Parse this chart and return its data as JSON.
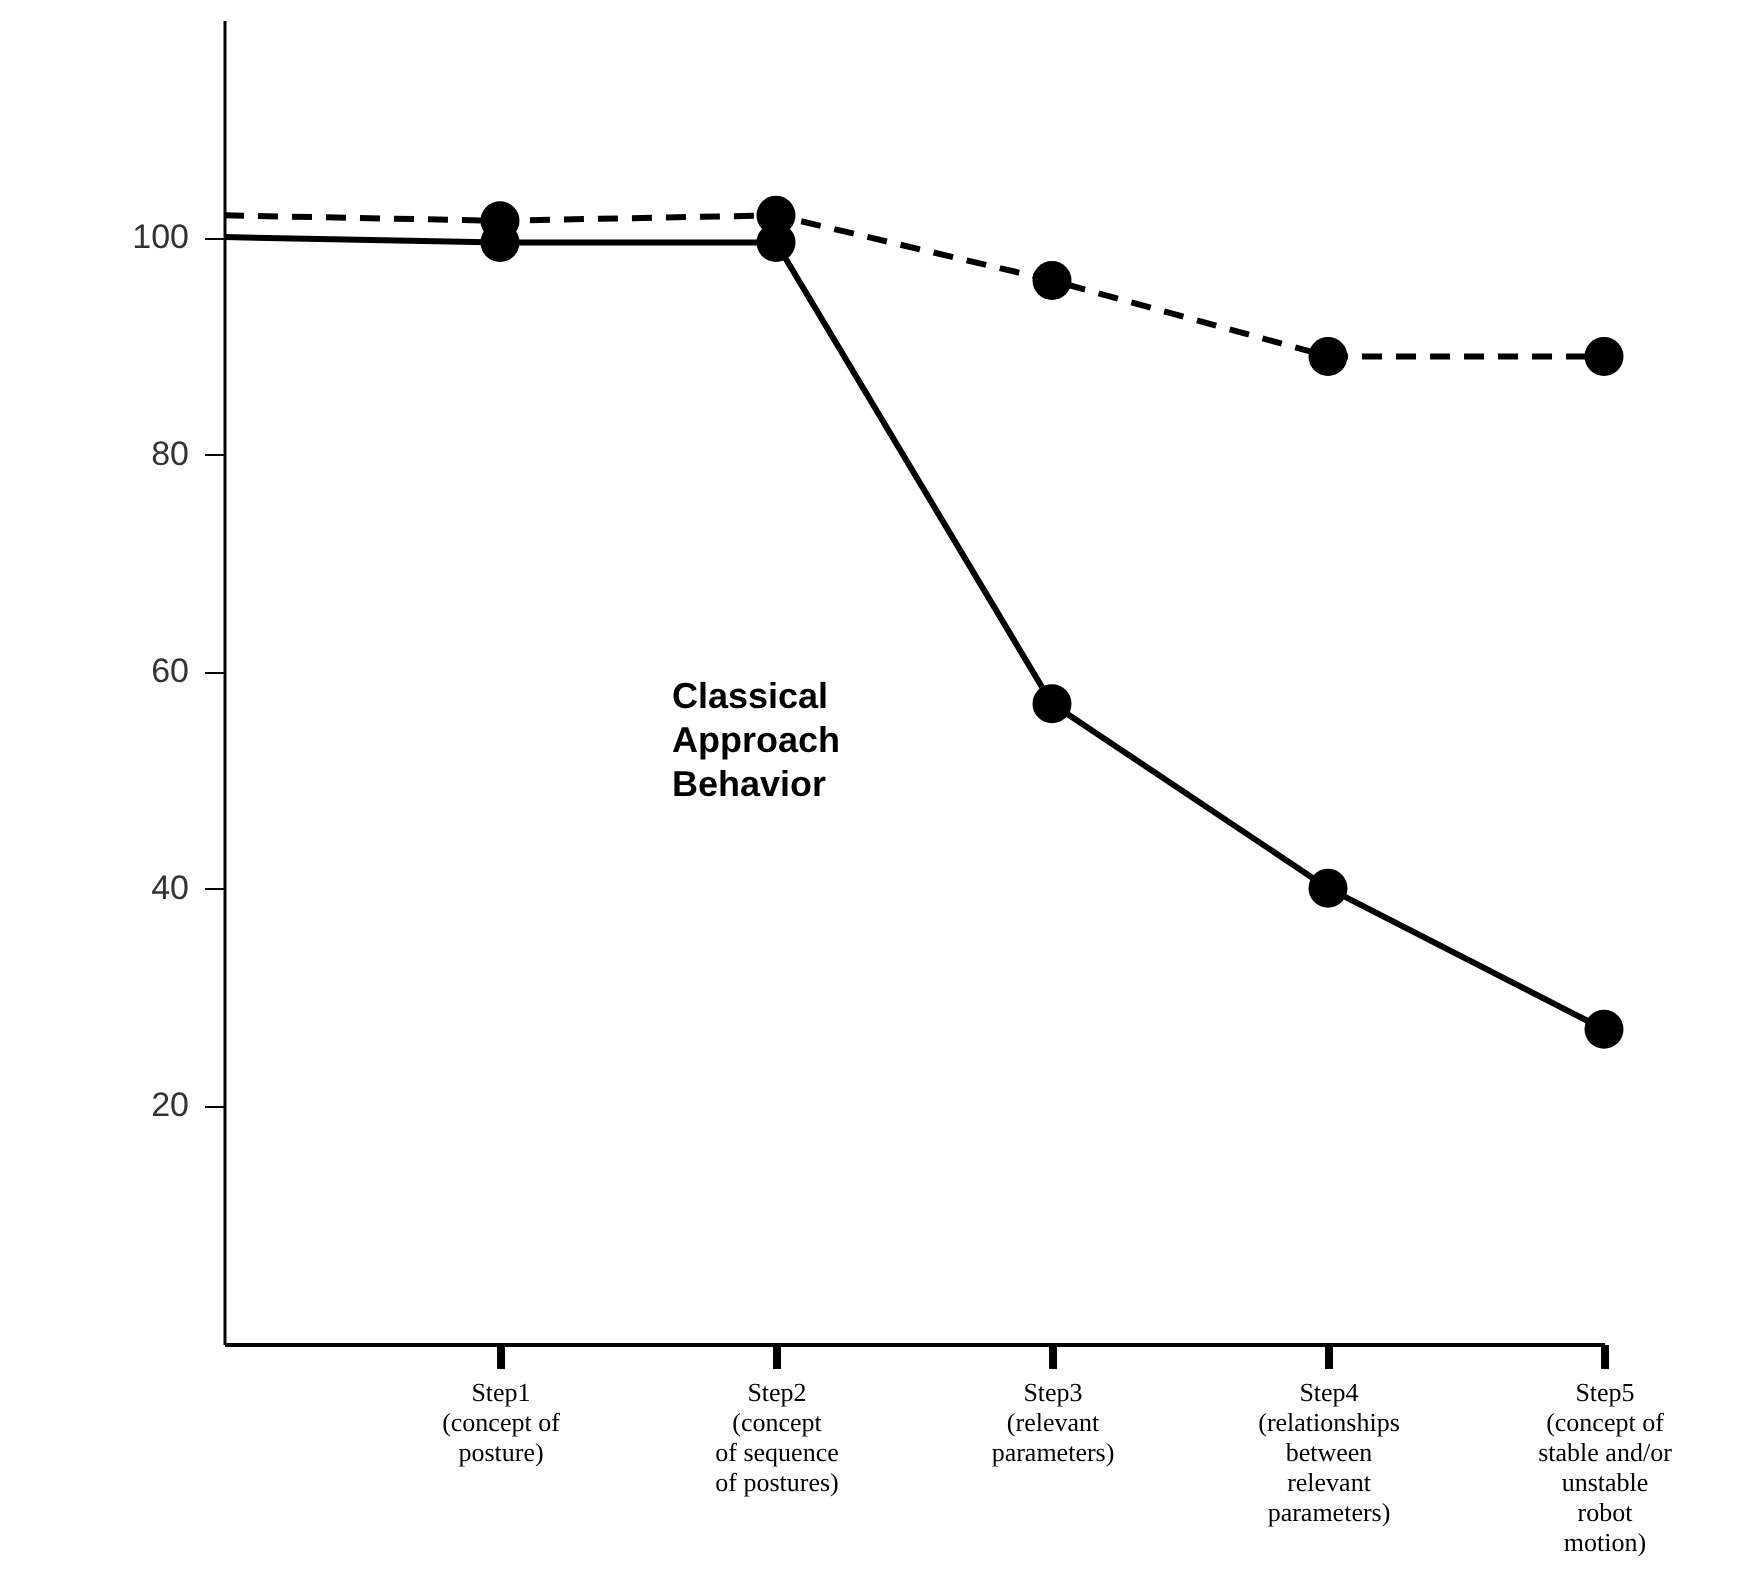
{
  "chart_data": {
    "type": "line",
    "categories": [
      null,
      "Step1\n(concept of\nposture)",
      "Step2\n(concept\nof sequence\nof postures)",
      "Step3\n(relevant\nparameters)",
      "Step4\n(relationships\nbetween\nrelevant\nparameters)",
      "Step5\n(concept of\nstable and/or\nunstable\nrobot\nmotion)"
    ],
    "series": [
      {
        "name": "Classical Approach Behavior",
        "color": "#000000",
        "line_style": "solid",
        "values": [
          100,
          99.5,
          99.5,
          57,
          40,
          27
        ]
      },
      {
        "color": "#000000",
        "line_style": "dashed",
        "values": [
          102,
          101.5,
          102,
          96,
          89,
          89
        ]
      }
    ],
    "ylim": [
      -2,
      120
    ],
    "yticks": [
      20,
      40,
      60,
      80,
      100
    ],
    "grid": false,
    "marker": "circle"
  }
}
